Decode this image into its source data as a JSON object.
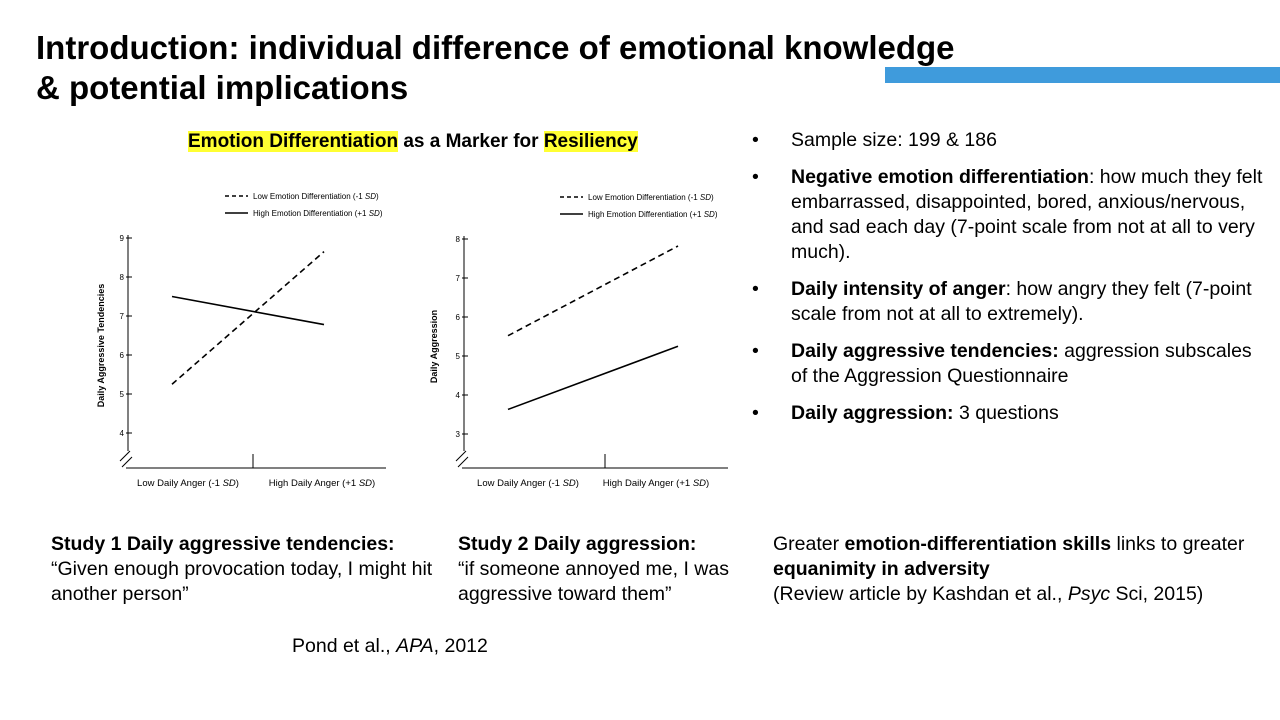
{
  "title": {
    "line1": "Introduction: individual difference of emotional knowledge",
    "line2": "& potential implications"
  },
  "theme": {
    "accent": "#3f9bdc",
    "highlight": "#ffff33"
  },
  "chart_heading": {
    "part1": "Emotion Differentiation",
    "part2": " as a Marker for ",
    "part3": "Resiliency"
  },
  "chart_data": [
    {
      "type": "line",
      "title": "",
      "ylabel": "Daily Aggressive Tendencies",
      "ylim": [
        4,
        9
      ],
      "yticks": [
        "4",
        "5",
        "6",
        "7",
        "8",
        "9"
      ],
      "categories": [
        "Low Daily Anger (-1 SD)",
        "High Daily Anger (+1 SD)"
      ],
      "series": [
        {
          "name": "Low Emotion Differentiation (-1 SD)",
          "style": "dashed",
          "values": [
            5.25,
            8.65
          ]
        },
        {
          "name": "High Emotion Differentiation (+1 SD)",
          "style": "solid",
          "values": [
            7.5,
            6.78
          ]
        }
      ],
      "legend": "top-right"
    },
    {
      "type": "line",
      "title": "",
      "ylabel": "Daily Aggression",
      "ylim": [
        3,
        8
      ],
      "yticks": [
        "3",
        "4",
        "5",
        "6",
        "7",
        "8"
      ],
      "categories": [
        "Low Daily Anger (-1 SD)",
        "High Daily Anger (+1 SD)"
      ],
      "series": [
        {
          "name": "Low Emotion Differentiation (-1 SD)",
          "style": "dashed",
          "values": [
            5.52,
            7.82
          ]
        },
        {
          "name": "High Emotion Differentiation (+1 SD)",
          "style": "solid",
          "values": [
            3.63,
            5.25
          ]
        }
      ],
      "legend": "top-right"
    }
  ],
  "bullets": [
    {
      "bold": "",
      "text": "Sample size: 199 & 186"
    },
    {
      "bold": "Negative emotion differentiation",
      "text": ": how much they felt embarrassed, disappointed, bored, anxious/nervous, and sad each day (7-point scale from not at all to very much)."
    },
    {
      "bold": "Daily intensity of anger",
      "text": ": how angry they felt (7-point scale from not at all to extremely)."
    },
    {
      "bold": "Daily aggressive tendencies:",
      "text": " aggression subscales of the Aggression Questionnaire"
    },
    {
      "bold": "Daily aggression:",
      "text": " 3 questions"
    }
  ],
  "captions": {
    "study1": {
      "bold": "Study 1 Daily aggressive tendencies:",
      "text": "“Given enough provocation today, I might hit another person”"
    },
    "study2": {
      "bold": "Study 2 Daily aggression:",
      "text": "“if someone annoyed me, I was aggressive toward them”"
    },
    "summary": {
      "t1": "Greater ",
      "b1": "emotion-differentiation skills",
      "t2": " links to greater ",
      "b2": "equanimity in adversity",
      "t3": "(Review article by Kashdan et al., ",
      "i1": "Psyc",
      "t4": " Sci, 2015)"
    }
  },
  "citation": {
    "authors": "Pond et al., ",
    "journal": "APA",
    "year": ", 2012"
  }
}
